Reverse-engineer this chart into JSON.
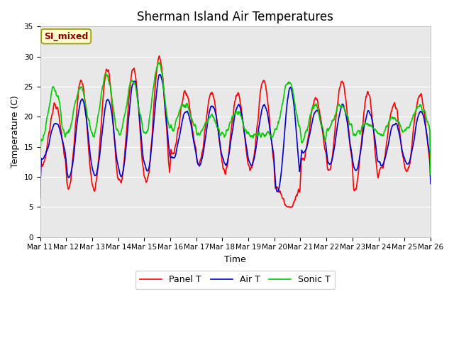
{
  "title": "Sherman Island Air Temperatures",
  "xlabel": "Time",
  "ylabel": "Temperature (C)",
  "ylim": [
    0,
    35
  ],
  "yticks": [
    0,
    5,
    10,
    15,
    20,
    25,
    30,
    35
  ],
  "xtick_labels": [
    "Mar 11",
    "Mar 12",
    "Mar 13",
    "Mar 14",
    "Mar 15",
    "Mar 16",
    "Mar 17",
    "Mar 18",
    "Mar 19",
    "Mar 20",
    "Mar 21",
    "Mar 22",
    "Mar 23",
    "Mar 24",
    "Mar 25",
    "Mar 26"
  ],
  "legend_labels": [
    "Panel T",
    "Air T",
    "Sonic T"
  ],
  "legend_colors": [
    "#ff0000",
    "#0000cc",
    "#00cc00"
  ],
  "line_width": 1.2,
  "plot_bg_color": "#e8e8e8",
  "fig_bg_color": "#ffffff",
  "title_fontsize": 12,
  "axis_label_fontsize": 9,
  "tick_fontsize": 7.5,
  "annotation_text": "SI_mixed",
  "annotation_bg": "#ffffcc",
  "annotation_fg": "#8b0000",
  "grid_color": "#ffffff",
  "n_days": 15,
  "pts_per_day": 72
}
